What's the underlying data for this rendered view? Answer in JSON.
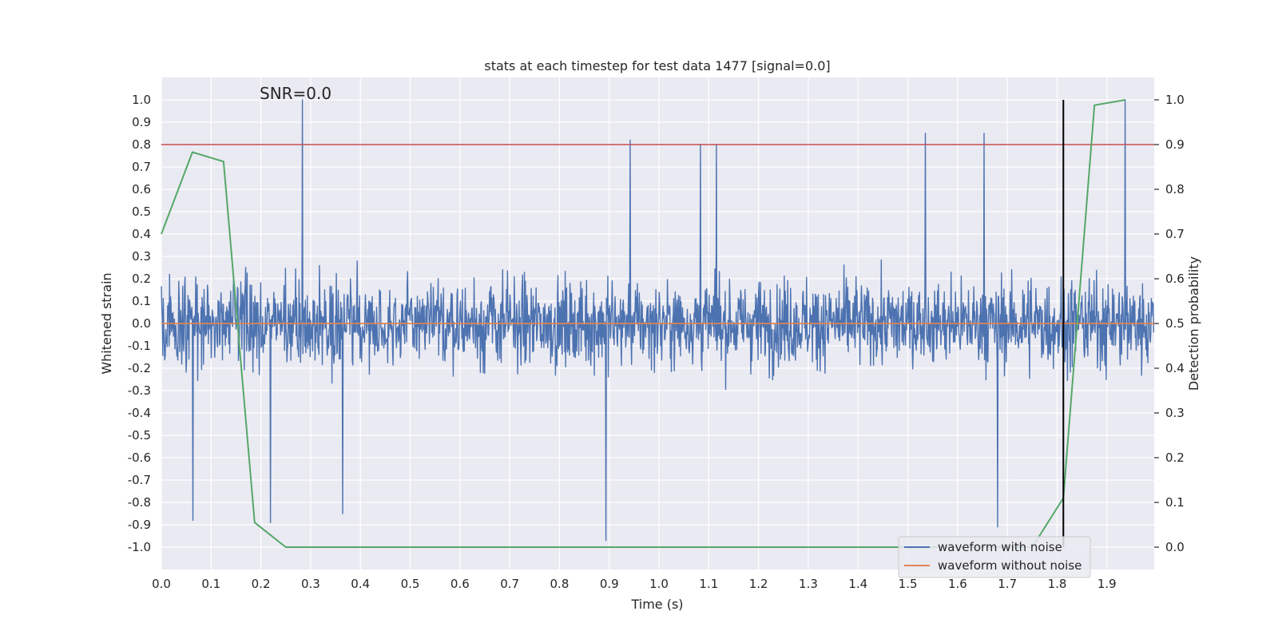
{
  "chart_data": {
    "type": "line",
    "title": "stats at each timestep for test data 1477 [signal=0.0]",
    "xlabel": "Time (s)",
    "ylabel": "Whitened strain",
    "y2label": "Detection probability",
    "xlim": [
      0.0,
      1.995
    ],
    "ylim": [
      -1.1,
      1.1
    ],
    "y2lim": [
      -0.05,
      1.05
    ],
    "xticks": [
      "0.0",
      "0.1",
      "0.2",
      "0.3",
      "0.4",
      "0.5",
      "0.6",
      "0.7",
      "0.8",
      "0.9",
      "1.0",
      "1.1",
      "1.2",
      "1.3",
      "1.4",
      "1.5",
      "1.6",
      "1.7",
      "1.8",
      "1.9"
    ],
    "yticks": [
      "1.0",
      "0.9",
      "0.8",
      "0.7",
      "0.6",
      "0.5",
      "0.4",
      "0.3",
      "0.2",
      "0.1",
      "0.0",
      "-0.1",
      "-0.2",
      "-0.3",
      "-0.4",
      "-0.5",
      "-0.6",
      "-0.7",
      "-0.8",
      "-0.9",
      "-1.0"
    ],
    "y2ticks": [
      "1.0",
      "0.9",
      "0.8",
      "0.7",
      "0.6",
      "0.5",
      "0.4",
      "0.3",
      "0.2",
      "0.1",
      "0.0"
    ],
    "grid": true,
    "annotation": "SNR=0.0",
    "legend_placement": "lower-right",
    "series": [
      {
        "name": "waveform with noise",
        "axis": "left",
        "color": "#4c72b0",
        "description_samples": "dense noise, amplitude mostly within ±0.6; notable peaks",
        "peaks": [
          {
            "x": 0.283,
            "y": 1.0
          },
          {
            "x": 0.942,
            "y": 0.82
          },
          {
            "x": 1.083,
            "y": 0.8
          },
          {
            "x": 1.115,
            "y": 0.8
          },
          {
            "x": 1.535,
            "y": 0.85
          },
          {
            "x": 1.653,
            "y": 0.85
          },
          {
            "x": 1.937,
            "y": 1.0
          },
          {
            "x": 0.893,
            "y": -0.97
          },
          {
            "x": 0.219,
            "y": -0.89
          },
          {
            "x": 0.063,
            "y": -0.88
          },
          {
            "x": 0.364,
            "y": -0.85
          },
          {
            "x": 1.68,
            "y": -0.91
          }
        ]
      },
      {
        "name": "waveform without noise",
        "axis": "left",
        "color": "#dd8452",
        "x": [
          0.0,
          1.995
        ],
        "y": [
          0.0,
          0.0
        ]
      },
      {
        "axis": "right",
        "color": "#55a868",
        "x": [
          0.0,
          0.0625,
          0.125,
          0.1875,
          0.25,
          0.3125,
          1.75,
          1.8125,
          1.875,
          1.9375
        ],
        "y": [
          0.7,
          0.883,
          0.862,
          0.055,
          0.0,
          0.0,
          0.0,
          0.11,
          0.988,
          1.0
        ]
      }
    ],
    "hlines": [
      {
        "axis": "left",
        "y": 0.8,
        "color": "#c44e52"
      }
    ],
    "vlines": [
      {
        "axis": "right",
        "x": 1.8125,
        "ymin": 0.0,
        "ymax": 1.0,
        "color": "#000000"
      }
    ]
  }
}
